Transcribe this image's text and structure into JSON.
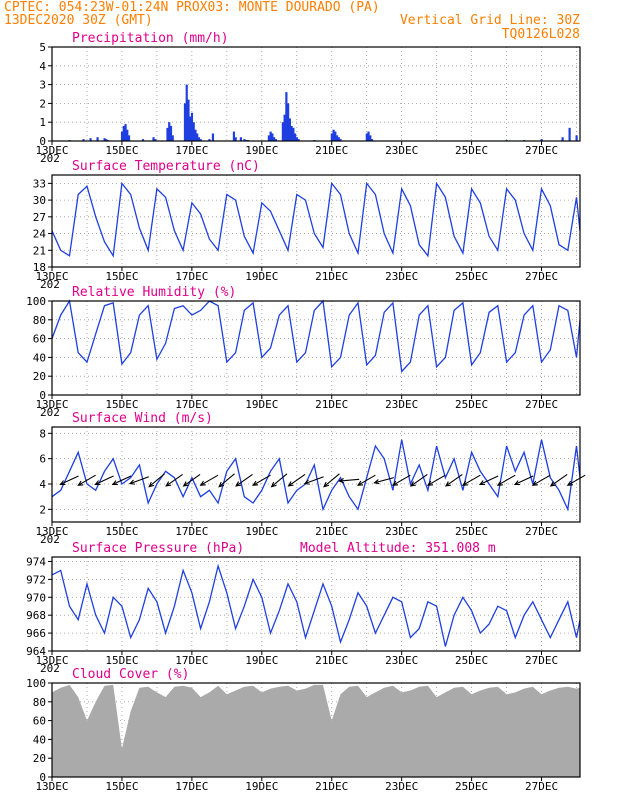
{
  "header": {
    "line1_left": "CPTEC:  054:23W-01:24N  PROX03: MONTE DOURADO (PA)",
    "line2_left": "13DEC2020 30Z (GMT)",
    "line2_right": "Vertical Grid Line: 30Z",
    "line3_right": "TQ0126L028"
  },
  "colors": {
    "header": "#ff7f00",
    "panel_title": "#e0008c",
    "series": "#1f3fe0",
    "cloud": "#aaaaaa",
    "grid": "#999999"
  },
  "x_axis": {
    "first_tick_label": "13DEC",
    "first_tick_sublabel": "202",
    "ticks": [
      "13DEC",
      "15DEC",
      "17DEC",
      "19DEC",
      "21DEC",
      "23DEC",
      "25DEC",
      "27DEC"
    ],
    "range_days": [
      13,
      28.1
    ]
  },
  "chart_data": [
    {
      "type": "bar",
      "title": "Precipitation (mm/h)",
      "ylim": [
        0,
        5
      ],
      "yticks": [
        0,
        1,
        2,
        3,
        4,
        5
      ],
      "x": [
        13.5,
        13.9,
        14.1,
        14.3,
        14.5,
        14.55,
        14.6,
        15.0,
        15.05,
        15.1,
        15.15,
        15.2,
        15.6,
        15.9,
        15.95,
        16.3,
        16.35,
        16.4,
        16.45,
        16.8,
        16.85,
        16.9,
        16.95,
        17.0,
        17.05,
        17.1,
        17.15,
        17.2,
        17.25,
        17.5,
        17.6,
        18.2,
        18.25,
        18.4,
        18.5,
        18.55,
        18.6,
        19.2,
        19.25,
        19.3,
        19.35,
        19.4,
        19.6,
        19.65,
        19.7,
        19.75,
        19.8,
        19.85,
        19.9,
        19.95,
        20.0,
        20.05,
        20.5,
        21.0,
        21.05,
        21.1,
        21.15,
        21.2,
        21.25,
        22.0,
        22.05,
        22.1,
        22.15,
        26.0,
        26.5,
        27.0,
        27.6,
        27.8,
        28.0
      ],
      "values": [
        0.05,
        0.1,
        0.15,
        0.2,
        0.15,
        0.1,
        0.05,
        0.5,
        0.8,
        0.9,
        0.6,
        0.3,
        0.1,
        0.2,
        0.1,
        0.7,
        1.0,
        0.8,
        0.3,
        2.0,
        3.0,
        2.2,
        1.3,
        1.5,
        1.0,
        0.6,
        0.4,
        0.2,
        0.1,
        0.1,
        0.4,
        0.5,
        0.2,
        0.2,
        0.1,
        0.05,
        0.05,
        0.3,
        0.5,
        0.4,
        0.2,
        0.1,
        1.0,
        1.4,
        2.6,
        2.0,
        1.2,
        0.8,
        0.7,
        0.4,
        0.2,
        0.1,
        0.05,
        0.4,
        0.6,
        0.5,
        0.3,
        0.2,
        0.1,
        0.4,
        0.5,
        0.3,
        0.1,
        0.05,
        0.05,
        0.1,
        0.2,
        0.7,
        0.3
      ]
    },
    {
      "type": "line",
      "title": "Surface Temperature (nC)",
      "ylim": [
        18,
        34.5
      ],
      "yticks": [
        18,
        21,
        24,
        27,
        30,
        33
      ],
      "x": [
        13.0,
        13.25,
        13.5,
        13.75,
        14.0,
        14.25,
        14.5,
        14.75,
        15.0,
        15.25,
        15.5,
        15.75,
        16.0,
        16.25,
        16.5,
        16.75,
        17.0,
        17.25,
        17.5,
        17.75,
        18.0,
        18.25,
        18.5,
        18.75,
        19.0,
        19.25,
        19.5,
        19.75,
        20.0,
        20.25,
        20.5,
        20.75,
        21.0,
        21.25,
        21.5,
        21.75,
        22.0,
        22.25,
        22.5,
        22.75,
        23.0,
        23.25,
        23.5,
        23.75,
        24.0,
        24.25,
        24.5,
        24.75,
        25.0,
        25.25,
        25.5,
        25.75,
        26.0,
        26.25,
        26.5,
        26.75,
        27.0,
        27.25,
        27.5,
        27.75,
        28.0,
        28.1
      ],
      "values": [
        24.5,
        21.0,
        20.0,
        31.0,
        32.5,
        27.0,
        22.5,
        20.0,
        33.0,
        31.0,
        25.0,
        21.0,
        32.0,
        30.5,
        24.5,
        21.0,
        29.5,
        27.5,
        23.0,
        21.0,
        31.0,
        30.0,
        23.5,
        20.5,
        29.5,
        28.0,
        24.5,
        21.0,
        31.0,
        30.0,
        24.0,
        21.5,
        33.0,
        31.0,
        24.0,
        20.5,
        33.0,
        31.0,
        24.0,
        20.5,
        32.0,
        29.0,
        22.0,
        20.0,
        33.0,
        30.5,
        23.5,
        20.5,
        32.0,
        29.5,
        23.5,
        21.0,
        32.0,
        30.0,
        24.0,
        21.0,
        32.0,
        29.0,
        22.0,
        21.0,
        30.5,
        24.5
      ]
    },
    {
      "type": "line",
      "title": "Relative Humidity (%)",
      "ylim": [
        0,
        100
      ],
      "yticks": [
        0,
        20,
        40,
        60,
        80,
        100
      ],
      "x": [
        13.0,
        13.25,
        13.5,
        13.75,
        14.0,
        14.25,
        14.5,
        14.75,
        15.0,
        15.25,
        15.5,
        15.75,
        16.0,
        16.25,
        16.5,
        16.75,
        17.0,
        17.25,
        17.5,
        17.75,
        18.0,
        18.25,
        18.5,
        18.75,
        19.0,
        19.25,
        19.5,
        19.75,
        20.0,
        20.25,
        20.5,
        20.75,
        21.0,
        21.25,
        21.5,
        21.75,
        22.0,
        22.25,
        22.5,
        22.75,
        23.0,
        23.25,
        23.5,
        23.75,
        24.0,
        24.25,
        24.5,
        24.75,
        25.0,
        25.25,
        25.5,
        25.75,
        26.0,
        26.25,
        26.5,
        26.75,
        27.0,
        27.25,
        27.5,
        27.75,
        28.0,
        28.1
      ],
      "values": [
        60.0,
        85.0,
        100.0,
        45.0,
        35.0,
        65.0,
        95.0,
        98.0,
        33.0,
        45.0,
        85.0,
        95.0,
        38.0,
        55.0,
        92.0,
        95.0,
        85.0,
        90.0,
        100.0,
        95.0,
        35.0,
        45.0,
        90.0,
        98.0,
        40.0,
        50.0,
        85.0,
        95.0,
        35.0,
        45.0,
        90.0,
        100.0,
        30.0,
        40.0,
        85.0,
        98.0,
        32.0,
        42.0,
        88.0,
        98.0,
        25.0,
        35.0,
        85.0,
        95.0,
        30.0,
        40.0,
        90.0,
        98.0,
        32.0,
        45.0,
        88.0,
        95.0,
        35.0,
        45.0,
        85.0,
        95.0,
        35.0,
        48.0,
        95.0,
        90.0,
        40.0,
        80.0
      ]
    },
    {
      "type": "line",
      "title": "Surface Wind (m/s)",
      "ylim": [
        1,
        8.5
      ],
      "yticks": [
        2,
        4,
        6,
        8
      ],
      "x": [
        13.0,
        13.25,
        13.5,
        13.75,
        14.0,
        14.25,
        14.5,
        14.75,
        15.0,
        15.25,
        15.5,
        15.75,
        16.0,
        16.25,
        16.5,
        16.75,
        17.0,
        17.25,
        17.5,
        17.75,
        18.0,
        18.25,
        18.5,
        18.75,
        19.0,
        19.25,
        19.5,
        19.75,
        20.0,
        20.25,
        20.5,
        20.75,
        21.0,
        21.25,
        21.5,
        21.75,
        22.0,
        22.25,
        22.5,
        22.75,
        23.0,
        23.25,
        23.5,
        23.75,
        24.0,
        24.25,
        24.5,
        24.75,
        25.0,
        25.25,
        25.5,
        25.75,
        26.0,
        26.25,
        26.5,
        26.75,
        27.0,
        27.25,
        27.5,
        27.75,
        28.0,
        28.1
      ],
      "values": [
        3.0,
        3.5,
        5.0,
        6.5,
        4.0,
        3.5,
        5.0,
        6.0,
        4.0,
        4.5,
        5.5,
        2.5,
        4.0,
        5.0,
        4.5,
        3.0,
        4.5,
        3.0,
        3.5,
        2.5,
        5.0,
        6.0,
        3.0,
        2.5,
        3.5,
        5.0,
        6.0,
        2.5,
        3.5,
        4.0,
        5.5,
        2.0,
        3.5,
        4.5,
        3.0,
        2.0,
        4.5,
        7.0,
        6.0,
        3.5,
        7.5,
        4.0,
        5.5,
        3.5,
        7.0,
        4.5,
        6.0,
        3.5,
        6.5,
        5.0,
        4.0,
        3.0,
        7.0,
        5.0,
        6.5,
        4.0,
        7.5,
        4.5,
        3.5,
        2.0,
        7.0,
        4.5
      ]
    },
    {
      "type": "line",
      "title": "Surface Pressure (hPa)",
      "annotation": "Model Altitude: 351.008  m",
      "ylim": [
        964,
        974.5
      ],
      "yticks": [
        964,
        966,
        968,
        970,
        972,
        974
      ],
      "x": [
        13.0,
        13.25,
        13.5,
        13.75,
        14.0,
        14.25,
        14.5,
        14.75,
        15.0,
        15.25,
        15.5,
        15.75,
        16.0,
        16.25,
        16.5,
        16.75,
        17.0,
        17.25,
        17.5,
        17.75,
        18.0,
        18.25,
        18.5,
        18.75,
        19.0,
        19.25,
        19.5,
        19.75,
        20.0,
        20.25,
        20.5,
        20.75,
        21.0,
        21.25,
        21.5,
        21.75,
        22.0,
        22.25,
        22.5,
        22.75,
        23.0,
        23.25,
        23.5,
        23.75,
        24.0,
        24.25,
        24.5,
        24.75,
        25.0,
        25.25,
        25.5,
        25.75,
        26.0,
        26.25,
        26.5,
        26.75,
        27.0,
        27.25,
        27.5,
        27.75,
        28.0,
        28.1
      ],
      "values": [
        972.5,
        973.0,
        969.0,
        967.5,
        971.5,
        968.0,
        966.0,
        970.0,
        969.0,
        965.5,
        967.5,
        971.0,
        969.5,
        966.0,
        969.0,
        973.0,
        970.5,
        966.5,
        969.5,
        973.5,
        970.5,
        966.5,
        969.0,
        972.0,
        970.0,
        966.0,
        968.5,
        971.5,
        969.5,
        965.5,
        968.5,
        971.5,
        969.0,
        965.0,
        967.5,
        970.5,
        969.0,
        966.0,
        968.0,
        970.0,
        969.5,
        965.5,
        966.5,
        969.5,
        969.0,
        964.5,
        968.0,
        970.0,
        968.5,
        966.0,
        967.0,
        969.0,
        968.5,
        965.5,
        968.0,
        969.5,
        967.5,
        965.5,
        967.5,
        969.5,
        965.5,
        967.5
      ]
    },
    {
      "type": "area",
      "title": "Cloud Cover (%)",
      "ylim": [
        0,
        100
      ],
      "yticks": [
        0,
        20,
        40,
        60,
        80,
        100
      ],
      "x": [
        13.0,
        13.25,
        13.5,
        13.75,
        14.0,
        14.25,
        14.5,
        14.75,
        15.0,
        15.25,
        15.5,
        15.75,
        16.0,
        16.25,
        16.5,
        16.75,
        17.0,
        17.25,
        17.5,
        17.75,
        18.0,
        18.25,
        18.5,
        18.75,
        19.0,
        19.25,
        19.5,
        19.75,
        20.0,
        20.25,
        20.5,
        20.75,
        21.0,
        21.25,
        21.5,
        21.75,
        22.0,
        22.25,
        22.5,
        22.75,
        23.0,
        23.25,
        23.5,
        23.75,
        24.0,
        24.25,
        24.5,
        24.75,
        25.0,
        25.25,
        25.5,
        25.75,
        26.0,
        26.25,
        26.5,
        26.75,
        27.0,
        27.25,
        27.5,
        27.75,
        28.0,
        28.1
      ],
      "values": [
        90.0,
        95.0,
        98.0,
        85.0,
        60.0,
        80.0,
        97.0,
        98.0,
        30.0,
        70.0,
        95.0,
        96.0,
        90.0,
        85.0,
        96.0,
        97.0,
        95.0,
        85.0,
        90.0,
        97.0,
        88.0,
        92.0,
        96.0,
        97.0,
        90.0,
        94.0,
        96.0,
        97.0,
        92.0,
        94.0,
        98.0,
        98.0,
        60.0,
        88.0,
        96.0,
        97.0,
        85.0,
        90.0,
        95.0,
        97.0,
        90.0,
        92.0,
        96.0,
        97.0,
        85.0,
        90.0,
        95.0,
        96.0,
        88.0,
        92.0,
        95.0,
        96.0,
        88.0,
        90.0,
        94.0,
        96.0,
        88.0,
        92.0,
        95.0,
        96.0,
        94.0,
        95.0
      ]
    }
  ],
  "wind_arrows": [
    {
      "day": 13.5,
      "dir_deg": 245
    },
    {
      "day": 14.0,
      "dir_deg": 240
    },
    {
      "day": 14.5,
      "dir_deg": 245
    },
    {
      "day": 15.0,
      "dir_deg": 245
    },
    {
      "day": 15.5,
      "dir_deg": 250
    },
    {
      "day": 16.0,
      "dir_deg": 230
    },
    {
      "day": 16.5,
      "dir_deg": 235
    },
    {
      "day": 17.0,
      "dir_deg": 235
    },
    {
      "day": 17.5,
      "dir_deg": 240
    },
    {
      "day": 18.0,
      "dir_deg": 230
    },
    {
      "day": 18.5,
      "dir_deg": 235
    },
    {
      "day": 19.0,
      "dir_deg": 240
    },
    {
      "day": 19.5,
      "dir_deg": 230
    },
    {
      "day": 20.0,
      "dir_deg": 235
    },
    {
      "day": 20.5,
      "dir_deg": 250
    },
    {
      "day": 21.0,
      "dir_deg": 230
    },
    {
      "day": 21.5,
      "dir_deg": 265
    },
    {
      "day": 22.0,
      "dir_deg": 240
    },
    {
      "day": 22.5,
      "dir_deg": 255
    },
    {
      "day": 23.0,
      "dir_deg": 240
    },
    {
      "day": 23.5,
      "dir_deg": 235
    },
    {
      "day": 24.0,
      "dir_deg": 240
    },
    {
      "day": 24.5,
      "dir_deg": 235
    },
    {
      "day": 25.0,
      "dir_deg": 240
    },
    {
      "day": 25.5,
      "dir_deg": 245
    },
    {
      "day": 26.0,
      "dir_deg": 240
    },
    {
      "day": 26.5,
      "dir_deg": 245
    },
    {
      "day": 27.0,
      "dir_deg": 240
    },
    {
      "day": 27.5,
      "dir_deg": 235
    },
    {
      "day": 28.0,
      "dir_deg": 240
    }
  ]
}
